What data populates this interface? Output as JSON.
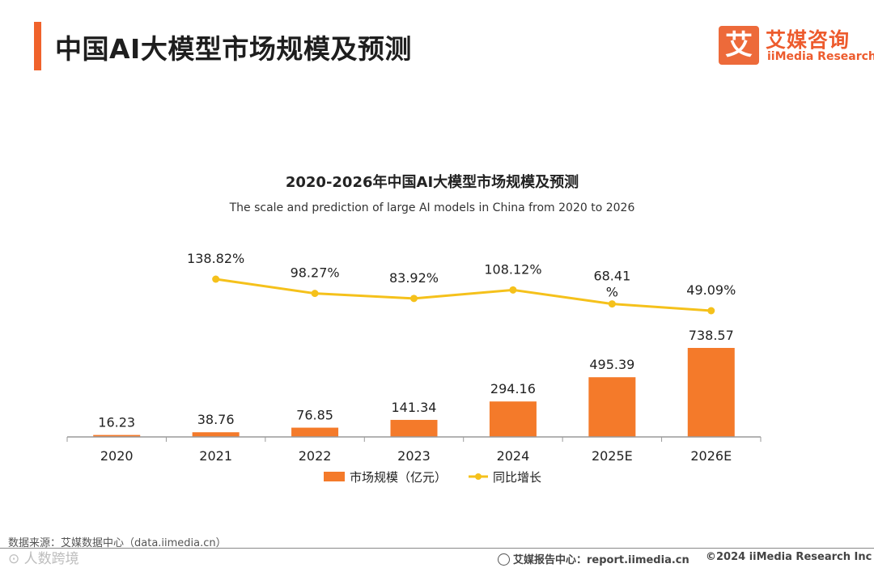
{
  "header": {
    "title": "中国AI大模型市场规模及预测"
  },
  "logo": {
    "mark": "艾",
    "cn": "艾媒咨询",
    "en": "iiMedia Research"
  },
  "colors": {
    "accent": "#f0622b",
    "bar": "#f47a2a",
    "line": "#f5c11b",
    "axis": "#9a9a9a",
    "text": "#222222"
  },
  "chart_data": {
    "type": "bar",
    "title": "2020-2026年中国AI大模型市场规模及预测",
    "subtitle": "The scale and prediction of large AI models in China from 2020 to 2026",
    "categories": [
      "2020",
      "2021",
      "2022",
      "2023",
      "2024",
      "2025E",
      "2026E"
    ],
    "series": [
      {
        "name": "市场规模（亿元）",
        "kind": "bar",
        "values": [
          16.23,
          38.76,
          76.85,
          141.34,
          294.16,
          495.39,
          738.57
        ],
        "labels": [
          "16.23",
          "38.76",
          "76.85",
          "141.34",
          "294.16",
          "495.39",
          "738.57"
        ]
      },
      {
        "name": "同比增长",
        "kind": "line",
        "values": [
          null,
          138.82,
          98.27,
          83.92,
          108.12,
          68.41,
          49.09
        ],
        "labels": [
          "",
          "138.82%",
          "98.27%",
          "83.92%",
          "108.12%",
          "68.41\n%",
          "49.09%"
        ]
      }
    ],
    "legend": "bottom",
    "grid": false
  },
  "footer": {
    "source": "数据来源：艾媒数据中心（data.iimedia.cn）",
    "watermark": "⊙ 人数跨境",
    "report": "艾媒报告中心：report.iimedia.cn",
    "copyright": "©2024  iiMedia Research  Inc"
  }
}
